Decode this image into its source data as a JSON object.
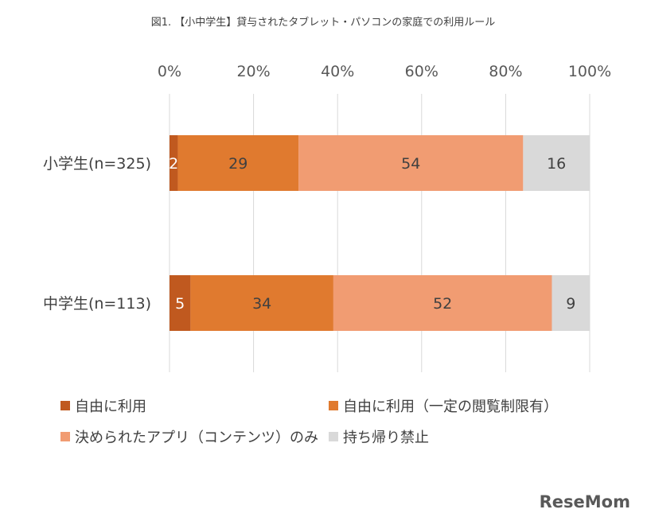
{
  "chart_data": {
    "type": "bar",
    "orientation": "horizontal",
    "stacked": true,
    "title": "図1. 【小中学生】貸与されたタブレット・パソコンの家庭での利用ルール",
    "categories": [
      "小学生(n=325)",
      "中学生(n=113)"
    ],
    "xlim": [
      0,
      100
    ],
    "x_ticks": [
      "0%",
      "20%",
      "40%",
      "60%",
      "80%",
      "100%"
    ],
    "x_tick_values": [
      0,
      20,
      40,
      60,
      80,
      100
    ],
    "grid": "vertical",
    "legend_position": "bottom",
    "series": [
      {
        "name": "自由に利用",
        "values": [
          2,
          5
        ],
        "color": "#c0591f",
        "label_color": "#ffffff"
      },
      {
        "name": "自由に利用（一定の閲覧制限有）",
        "values": [
          29,
          34
        ],
        "color": "#e07a2f",
        "label_color": "#404040"
      },
      {
        "name": "決められたアプリ（コンテンツ）のみ",
        "values": [
          54,
          52
        ],
        "color": "#f19c72",
        "label_color": "#404040"
      },
      {
        "name": "持ち帰り禁止",
        "values": [
          16,
          9
        ],
        "color": "#d9d9d9",
        "label_color": "#404040"
      }
    ],
    "data_labels": [
      [
        "2",
        "29",
        "54",
        "16"
      ],
      [
        "5",
        "34",
        "52",
        "9"
      ]
    ]
  },
  "watermark": "ReseMom"
}
